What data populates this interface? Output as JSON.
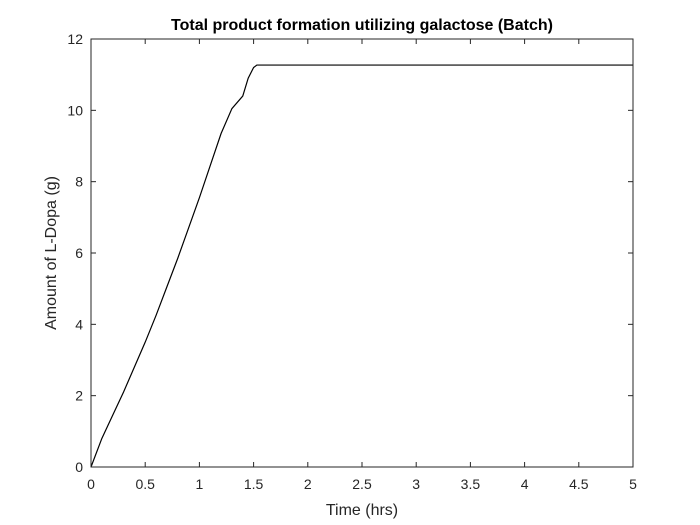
{
  "chart_data": {
    "type": "line",
    "title": "Total product formation utilizing galactose (Batch)",
    "xlabel": "Time (hrs)",
    "ylabel": "Amount of L-Dopa (g)",
    "xlim": [
      0,
      5
    ],
    "ylim": [
      0,
      12
    ],
    "xticks": [
      0,
      0.5,
      1,
      1.5,
      2,
      2.5,
      3,
      3.5,
      4,
      4.5,
      5
    ],
    "xtick_labels": [
      "0",
      "0.5",
      "1",
      "1.5",
      "2",
      "2.5",
      "3",
      "3.5",
      "4",
      "4.5",
      "5"
    ],
    "yticks": [
      0,
      2,
      4,
      6,
      8,
      10,
      12
    ],
    "ytick_labels": [
      "0",
      "2",
      "4",
      "6",
      "8",
      "10",
      "12"
    ],
    "grid": false,
    "line_color": "#000000",
    "series": [
      {
        "x": [
          0,
          0.1,
          0.2,
          0.3,
          0.4,
          0.5,
          0.6,
          0.7,
          0.8,
          0.9,
          1.0,
          1.1,
          1.2,
          1.3,
          1.4,
          1.45,
          1.5,
          1.53,
          1.55,
          1.6,
          2,
          2.5,
          3,
          3.5,
          4,
          4.5,
          5
        ],
        "y": [
          0,
          0.8,
          1.45,
          2.1,
          2.8,
          3.5,
          4.25,
          5.05,
          5.85,
          6.7,
          7.55,
          8.45,
          9.35,
          10.05,
          10.4,
          10.9,
          11.2,
          11.27,
          11.27,
          11.27,
          11.27,
          11.27,
          11.27,
          11.27,
          11.27,
          11.27,
          11.27
        ]
      }
    ]
  }
}
